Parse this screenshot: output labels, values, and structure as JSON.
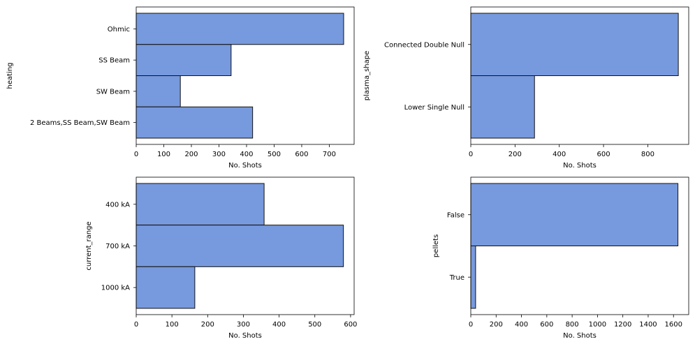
{
  "chart_data": [
    {
      "type": "bar",
      "orientation": "horizontal",
      "categories": [
        "Ohmic",
        "SS Beam",
        "SW Beam",
        "2 Beams,SS Beam,SW Beam"
      ],
      "values": [
        752,
        344,
        160,
        422
      ],
      "xlabel": "No. Shots",
      "ylabel": "heating",
      "xlim": [
        0,
        790
      ],
      "xticks": [
        0,
        100,
        200,
        300,
        400,
        500,
        600,
        700
      ],
      "grid": false
    },
    {
      "type": "bar",
      "orientation": "horizontal",
      "categories": [
        "Connected Double Null",
        "Lower Single Null"
      ],
      "values": [
        938,
        288
      ],
      "xlabel": "No. Shots",
      "ylabel": "plasma_shape",
      "xlim": [
        0,
        985
      ],
      "xticks": [
        0,
        200,
        400,
        600,
        800
      ],
      "grid": false
    },
    {
      "type": "bar",
      "orientation": "horizontal",
      "categories": [
        "400 kA",
        "700 kA",
        "1000 kA"
      ],
      "values": [
        358,
        580,
        164
      ],
      "xlabel": "No. Shots",
      "ylabel": "current_range",
      "xlim": [
        0,
        610
      ],
      "xticks": [
        0,
        100,
        200,
        300,
        400,
        500,
        600
      ],
      "grid": false
    },
    {
      "type": "bar",
      "orientation": "horizontal",
      "categories": [
        "False",
        "True"
      ],
      "values": [
        1635,
        38
      ],
      "xlabel": "No. Shots",
      "ylabel": "pellets",
      "xlim": [
        0,
        1720
      ],
      "xticks": [
        0,
        200,
        400,
        600,
        800,
        1000,
        1200,
        1400,
        1600
      ],
      "grid": false
    }
  ],
  "style": {
    "bar_fill": "#7799dd",
    "bar_edge": "#111111",
    "axis_color": "#000000"
  }
}
